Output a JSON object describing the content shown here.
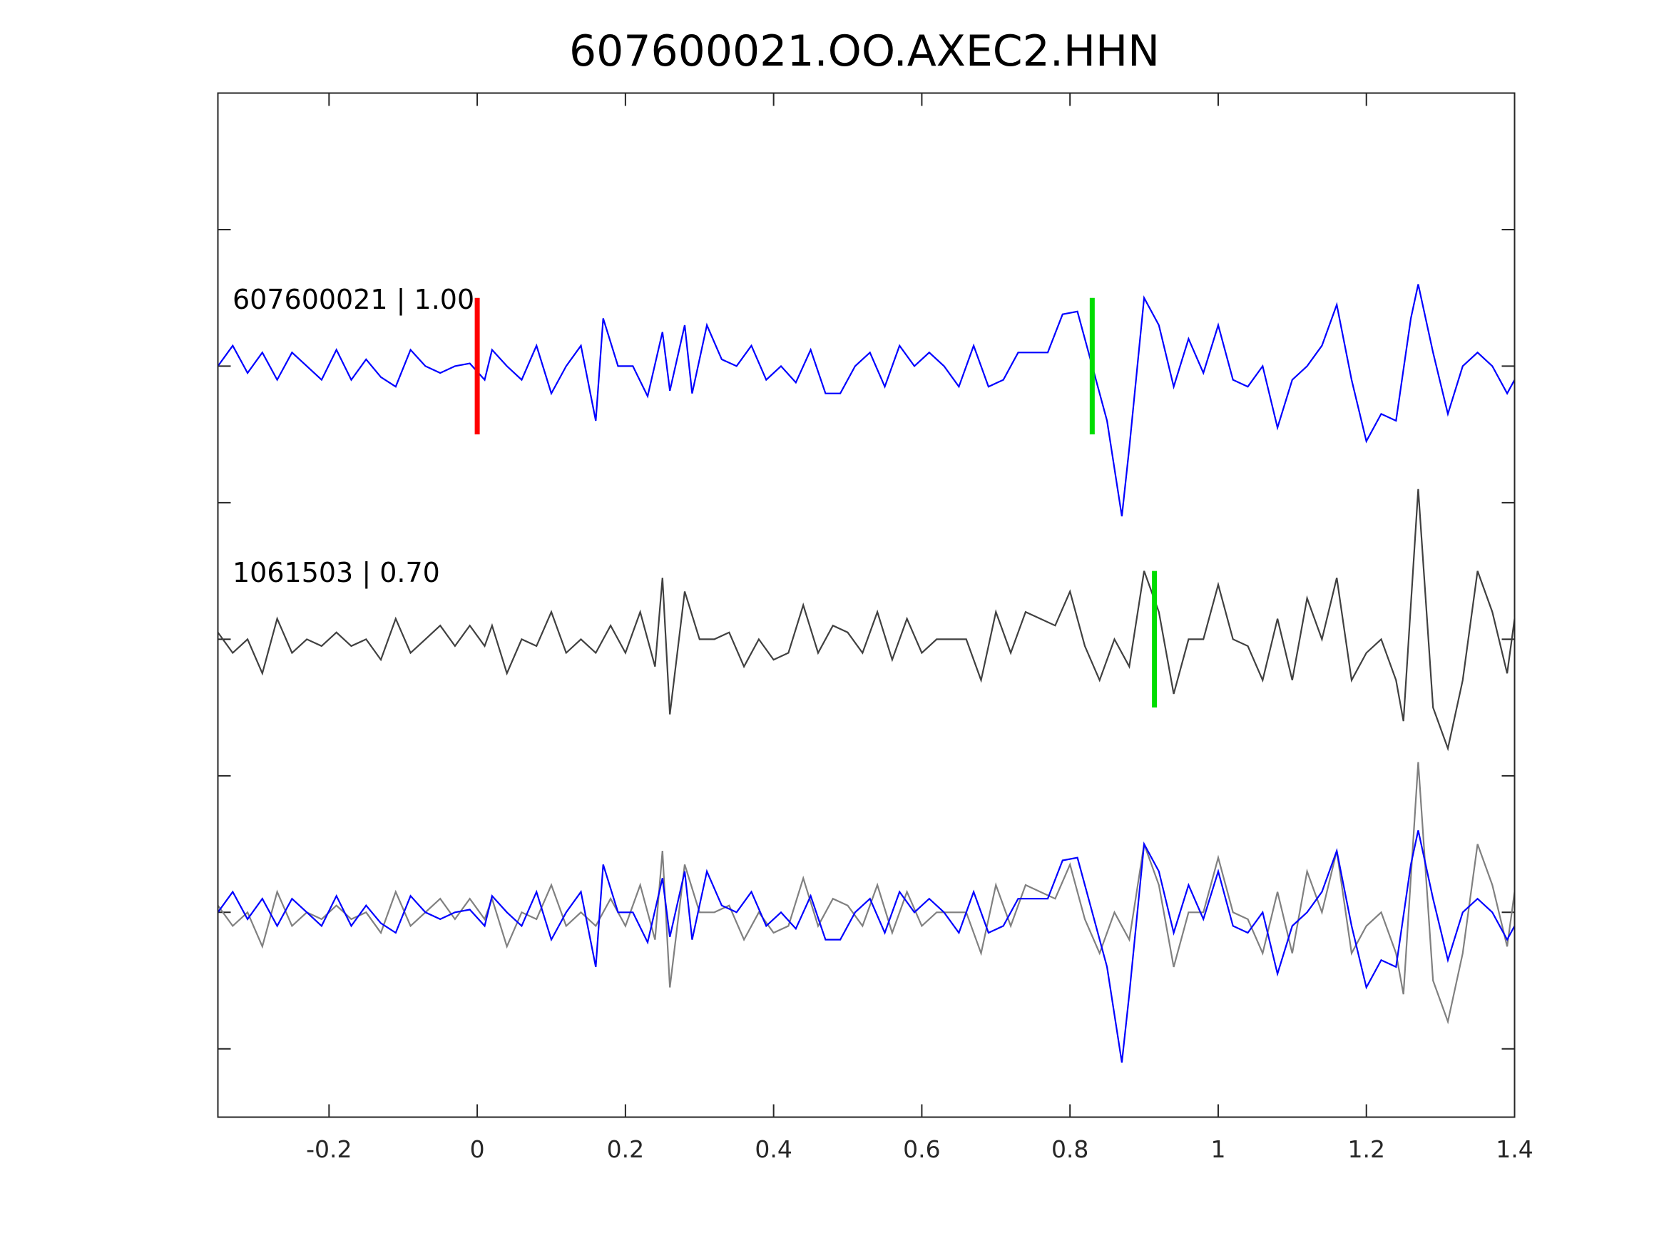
{
  "chart_data": {
    "type": "line",
    "title": "607600021.OO.AXEC2.HHN",
    "xlabel": "",
    "ylabel": "",
    "xlim": [
      -0.35,
      1.4
    ],
    "ylim": [
      0,
      7.5
    ],
    "xticks": [
      -0.2,
      0,
      0.2,
      0.4,
      0.6,
      0.8,
      1,
      1.2,
      1.4
    ],
    "xtick_labels": [
      "-0.2",
      "0",
      "0.2",
      "0.4",
      "0.6",
      "0.8",
      "1",
      "1.2",
      "1.4"
    ],
    "yticks": [
      0.5,
      1.5,
      2.5,
      3.5,
      4.5,
      5.5,
      6.5
    ],
    "grid": false,
    "colors": {
      "template": "#0000ff",
      "detection": "#404040",
      "overlay_detection": "#808080",
      "pick_red": "#ff0000",
      "pick_green": "#00dd00",
      "axis": "#262626"
    },
    "labels": [
      {
        "text": "607600021 | 1.00",
        "offset": 5.5
      },
      {
        "text": "1061503 | 0.70",
        "offset": 3.5
      }
    ],
    "picks": [
      {
        "x": 0.0,
        "offset": 5.5,
        "color": "#ff0000"
      },
      {
        "x": 0.83,
        "offset": 5.5,
        "color": "#00dd00"
      },
      {
        "x": 0.914,
        "offset": 3.5,
        "color": "#00dd00"
      }
    ],
    "series": [
      {
        "name": "607600021",
        "offset": 5.5,
        "color": "#0000ff",
        "x": [
          -0.35,
          -0.33,
          -0.31,
          -0.29,
          -0.27,
          -0.25,
          -0.23,
          -0.21,
          -0.19,
          -0.17,
          -0.15,
          -0.13,
          -0.11,
          -0.09,
          -0.07,
          -0.05,
          -0.03,
          -0.01,
          0.01,
          0.02,
          0.04,
          0.06,
          0.08,
          0.1,
          0.12,
          0.14,
          0.16,
          0.17,
          0.19,
          0.21,
          0.23,
          0.25,
          0.26,
          0.28,
          0.29,
          0.31,
          0.33,
          0.35,
          0.37,
          0.39,
          0.41,
          0.43,
          0.45,
          0.47,
          0.49,
          0.51,
          0.53,
          0.55,
          0.57,
          0.59,
          0.61,
          0.63,
          0.65,
          0.67,
          0.69,
          0.71,
          0.73,
          0.75,
          0.77,
          0.79,
          0.81,
          0.83,
          0.85,
          0.87,
          0.88,
          0.9,
          0.92,
          0.94,
          0.96,
          0.98,
          1.0,
          1.02,
          1.04,
          1.06,
          1.08,
          1.1,
          1.12,
          1.14,
          1.16,
          1.18,
          1.2,
          1.22,
          1.24,
          1.26,
          1.27,
          1.29,
          1.31,
          1.33,
          1.35,
          1.37,
          1.39,
          1.4
        ],
        "y": [
          0,
          0.15,
          -0.05,
          0.1,
          -0.1,
          0.1,
          0,
          -0.1,
          0.12,
          -0.1,
          0.05,
          -0.08,
          -0.15,
          0.12,
          0,
          -0.05,
          0,
          0.02,
          -0.1,
          0.12,
          0,
          -0.1,
          0.15,
          -0.2,
          0,
          0.15,
          -0.4,
          0.35,
          0,
          0,
          -0.22,
          0.25,
          -0.18,
          0.3,
          -0.2,
          0.3,
          0.05,
          0,
          0.15,
          -0.1,
          0,
          -0.12,
          0.12,
          -0.2,
          -0.2,
          0,
          0.1,
          -0.15,
          0.15,
          0,
          0.1,
          0,
          -0.15,
          0.15,
          -0.15,
          -0.1,
          0.1,
          0.1,
          0.1,
          0.38,
          0.4,
          0,
          -0.4,
          -1.1,
          -0.6,
          0.5,
          0.3,
          -0.15,
          0.2,
          -0.05,
          0.3,
          -0.1,
          -0.15,
          0,
          -0.45,
          -0.1,
          0,
          0.15,
          0.45,
          -0.1,
          -0.55,
          -0.35,
          -0.4,
          0.35,
          0.6,
          0.1,
          -0.35,
          0,
          0.1,
          0,
          -0.2,
          -0.1
        ]
      },
      {
        "name": "1061503",
        "offset": 3.5,
        "color": "#404040",
        "x": [
          -0.35,
          -0.33,
          -0.31,
          -0.29,
          -0.27,
          -0.25,
          -0.23,
          -0.21,
          -0.19,
          -0.17,
          -0.15,
          -0.13,
          -0.11,
          -0.09,
          -0.07,
          -0.05,
          -0.03,
          -0.01,
          0.01,
          0.02,
          0.04,
          0.06,
          0.08,
          0.1,
          0.12,
          0.14,
          0.16,
          0.18,
          0.2,
          0.22,
          0.24,
          0.25,
          0.26,
          0.28,
          0.3,
          0.32,
          0.34,
          0.36,
          0.38,
          0.4,
          0.42,
          0.44,
          0.46,
          0.48,
          0.5,
          0.52,
          0.54,
          0.56,
          0.58,
          0.6,
          0.62,
          0.64,
          0.66,
          0.68,
          0.7,
          0.72,
          0.74,
          0.76,
          0.78,
          0.8,
          0.82,
          0.84,
          0.86,
          0.88,
          0.9,
          0.92,
          0.94,
          0.96,
          0.98,
          1.0,
          1.02,
          1.04,
          1.06,
          1.08,
          1.1,
          1.12,
          1.14,
          1.16,
          1.18,
          1.2,
          1.22,
          1.24,
          1.25,
          1.27,
          1.29,
          1.31,
          1.33,
          1.35,
          1.37,
          1.39,
          1.4
        ],
        "y": [
          0.05,
          -0.1,
          0,
          -0.25,
          0.15,
          -0.1,
          0,
          -0.05,
          0.05,
          -0.05,
          0,
          -0.15,
          0.15,
          -0.1,
          0,
          0.1,
          -0.05,
          0.1,
          -0.05,
          0.1,
          -0.25,
          0,
          -0.05,
          0.2,
          -0.1,
          0,
          -0.1,
          0.1,
          -0.1,
          0.2,
          -0.2,
          0.45,
          -0.55,
          0.35,
          0,
          0,
          0.05,
          -0.2,
          0,
          -0.15,
          -0.1,
          0.25,
          -0.1,
          0.1,
          0.05,
          -0.1,
          0.2,
          -0.15,
          0.15,
          -0.1,
          0,
          0,
          0,
          -0.3,
          0.2,
          -0.1,
          0.2,
          0.15,
          0.1,
          0.35,
          -0.05,
          -0.3,
          0,
          -0.2,
          0.5,
          0.2,
          -0.4,
          0,
          0,
          0.4,
          0,
          -0.05,
          -0.3,
          0.15,
          -0.3,
          0.3,
          0,
          0.45,
          -0.3,
          -0.1,
          0,
          -0.3,
          -0.6,
          1.1,
          -0.5,
          -0.8,
          -0.3,
          0.5,
          0.2,
          -0.25,
          0.15
        ]
      }
    ],
    "overlay_offset": 1.5
  }
}
